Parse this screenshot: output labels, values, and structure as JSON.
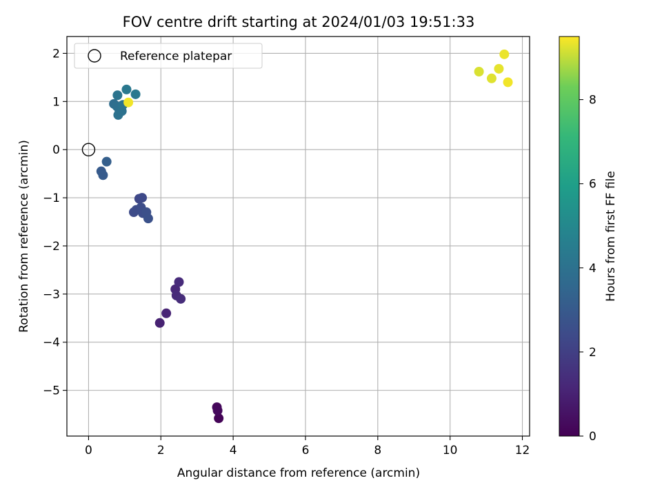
{
  "chart_data": {
    "type": "scatter",
    "title": "FOV centre drift starting at 2024/01/03 19:51:33",
    "xlabel": "Angular distance from reference (arcmin)",
    "ylabel": "Rotation from reference (arcmin)",
    "xlim": [
      -0.6,
      12.2
    ],
    "ylim": [
      -5.95,
      2.35
    ],
    "xticks": [
      0,
      2,
      4,
      6,
      8,
      10,
      12
    ],
    "xtick_labels": [
      "0",
      "2",
      "4",
      "6",
      "8",
      "10",
      "12"
    ],
    "yticks": [
      2,
      1,
      0,
      -1,
      -2,
      -3,
      -4,
      -5
    ],
    "ytick_labels": [
      "2",
      "1",
      "0",
      "−1",
      "−2",
      "−3",
      "−4",
      "−5"
    ],
    "grid": true,
    "legend": {
      "position": "top-left",
      "label": "Reference platepar"
    },
    "reference_point": {
      "x": 0,
      "y": 0
    },
    "colorbar": {
      "label": "Hours from first FF file",
      "colormap": "viridis",
      "range": [
        0,
        9.5
      ],
      "ticks": [
        0,
        2,
        4,
        6,
        8
      ],
      "tick_labels": [
        "0",
        "2",
        "4",
        "6",
        "8"
      ]
    },
    "points": [
      {
        "x": 3.6,
        "y": -5.58,
        "c": 0.1
      },
      {
        "x": 3.55,
        "y": -5.35,
        "c": 0.2
      },
      {
        "x": 3.57,
        "y": -5.42,
        "c": 0.25
      },
      {
        "x": 1.97,
        "y": -3.6,
        "c": 1.0
      },
      {
        "x": 2.15,
        "y": -3.4,
        "c": 1.1
      },
      {
        "x": 2.4,
        "y": -2.9,
        "c": 1.2
      },
      {
        "x": 2.43,
        "y": -3.03,
        "c": 1.25
      },
      {
        "x": 2.5,
        "y": -2.75,
        "c": 1.3
      },
      {
        "x": 2.55,
        "y": -3.1,
        "c": 1.35
      },
      {
        "x": 1.4,
        "y": -1.02,
        "c": 2.3
      },
      {
        "x": 1.48,
        "y": -1.0,
        "c": 2.35
      },
      {
        "x": 1.25,
        "y": -1.3,
        "c": 2.4
      },
      {
        "x": 1.32,
        "y": -1.25,
        "c": 2.45
      },
      {
        "x": 1.45,
        "y": -1.2,
        "c": 2.5
      },
      {
        "x": 1.5,
        "y": -1.32,
        "c": 2.55
      },
      {
        "x": 1.55,
        "y": -1.3,
        "c": 2.5
      },
      {
        "x": 1.6,
        "y": -1.3,
        "c": 2.6
      },
      {
        "x": 1.65,
        "y": -1.43,
        "c": 2.65
      },
      {
        "x": 0.35,
        "y": -0.45,
        "c": 3.0
      },
      {
        "x": 0.4,
        "y": -0.53,
        "c": 3.05
      },
      {
        "x": 0.5,
        "y": -0.25,
        "c": 3.2
      },
      {
        "x": 0.7,
        "y": 0.95,
        "c": 3.8
      },
      {
        "x": 0.78,
        "y": 0.9,
        "c": 3.9
      },
      {
        "x": 0.85,
        "y": 0.82,
        "c": 3.95
      },
      {
        "x": 0.82,
        "y": 0.72,
        "c": 4.0
      },
      {
        "x": 0.92,
        "y": 0.8,
        "c": 4.0
      },
      {
        "x": 0.95,
        "y": 0.93,
        "c": 4.05
      },
      {
        "x": 0.8,
        "y": 1.13,
        "c": 4.1
      },
      {
        "x": 1.05,
        "y": 1.25,
        "c": 4.3
      },
      {
        "x": 1.3,
        "y": 1.15,
        "c": 4.3
      },
      {
        "x": 1.1,
        "y": 0.98,
        "c": 9.4
      },
      {
        "x": 10.8,
        "y": 1.62,
        "c": 9.2
      },
      {
        "x": 11.15,
        "y": 1.48,
        "c": 9.25
      },
      {
        "x": 11.35,
        "y": 1.68,
        "c": 9.3
      },
      {
        "x": 11.5,
        "y": 1.98,
        "c": 9.35
      },
      {
        "x": 11.6,
        "y": 1.4,
        "c": 9.4
      }
    ]
  }
}
